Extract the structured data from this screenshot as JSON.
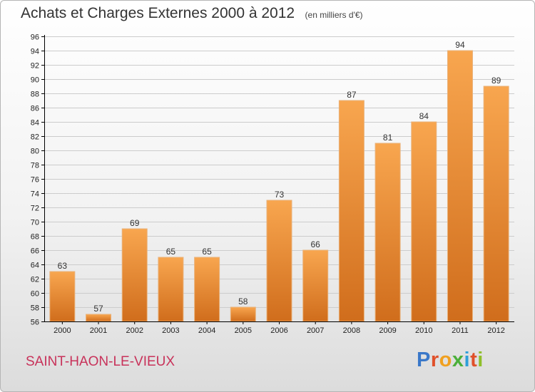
{
  "title": "Achats et Charges Externes 2000 à 2012",
  "unit": "(en milliers d'€)",
  "commune": "SAINT-HAON-LE-VIEUX",
  "logo": {
    "letters": [
      "P",
      "r",
      "o",
      "x",
      "i",
      "t",
      "i"
    ],
    "colors": [
      "#3a78c9",
      "#e0502a",
      "#f0a020",
      "#4caf3a",
      "#2e9fd9",
      "#e0502a",
      "#8fbf2a"
    ]
  },
  "colors": {
    "bar_light": "#f8a64f",
    "bar_dark": "#d06d1c",
    "grid": "#cccccc",
    "axis": "#000000"
  },
  "chart_data": {
    "type": "bar",
    "categories": [
      "2000",
      "2001",
      "2002",
      "2003",
      "2004",
      "2005",
      "2006",
      "2007",
      "2008",
      "2009",
      "2010",
      "2011",
      "2012"
    ],
    "values": [
      63,
      57,
      69,
      65,
      65,
      58,
      73,
      66,
      87,
      81,
      84,
      94,
      89
    ],
    "title": "Achats et Charges Externes 2000 à 2012",
    "xlabel": "",
    "ylabel": "",
    "ylim": [
      56,
      96
    ],
    "yticks": [
      56,
      58,
      60,
      62,
      64,
      66,
      68,
      70,
      72,
      74,
      76,
      78,
      80,
      82,
      84,
      86,
      88,
      90,
      92,
      94,
      96
    ],
    "grid": true,
    "data_labels": true
  }
}
